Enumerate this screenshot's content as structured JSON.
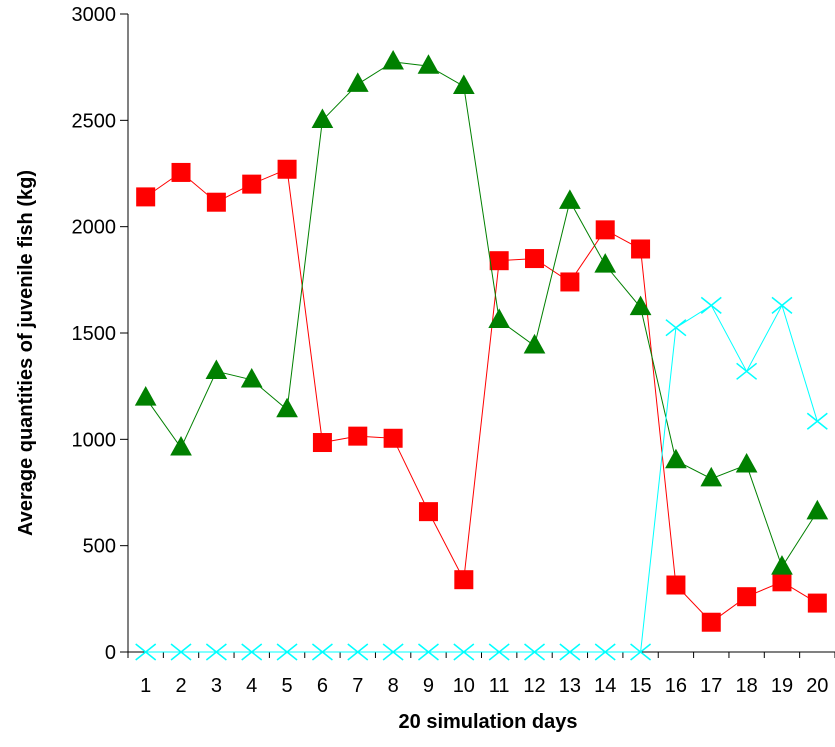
{
  "chart_data": {
    "type": "line",
    "xlabel": "20 simulation days",
    "ylabel": "Average quantities of juvenile fish (kg)",
    "x": [
      1,
      2,
      3,
      4,
      5,
      6,
      7,
      8,
      9,
      10,
      11,
      12,
      13,
      14,
      15,
      16,
      17,
      18,
      19,
      20
    ],
    "ylim": [
      0,
      3000
    ],
    "yticks": [
      0,
      500,
      1000,
      1500,
      2000,
      2500,
      3000
    ],
    "grid": false,
    "legend": "none",
    "series": [
      {
        "color": "#ff0000",
        "marker": "square",
        "values": [
          2140,
          2255,
          2115,
          2200,
          2270,
          985,
          1015,
          1005,
          660,
          340,
          1840,
          1850,
          1740,
          1985,
          1895,
          315,
          140,
          260,
          330,
          230
        ]
      },
      {
        "color": "#008000",
        "marker": "triangle",
        "values": [
          1195,
          960,
          1320,
          1280,
          1140,
          2500,
          2670,
          2775,
          2755,
          2660,
          1560,
          1440,
          2120,
          1820,
          1620,
          900,
          815,
          880,
          400,
          660
        ]
      },
      {
        "color": "#00ffff",
        "marker": "x",
        "values": [
          0,
          0,
          0,
          0,
          0,
          0,
          0,
          0,
          0,
          0,
          0,
          0,
          0,
          0,
          0,
          1525,
          1630,
          1320,
          1630,
          1085
        ]
      }
    ]
  }
}
